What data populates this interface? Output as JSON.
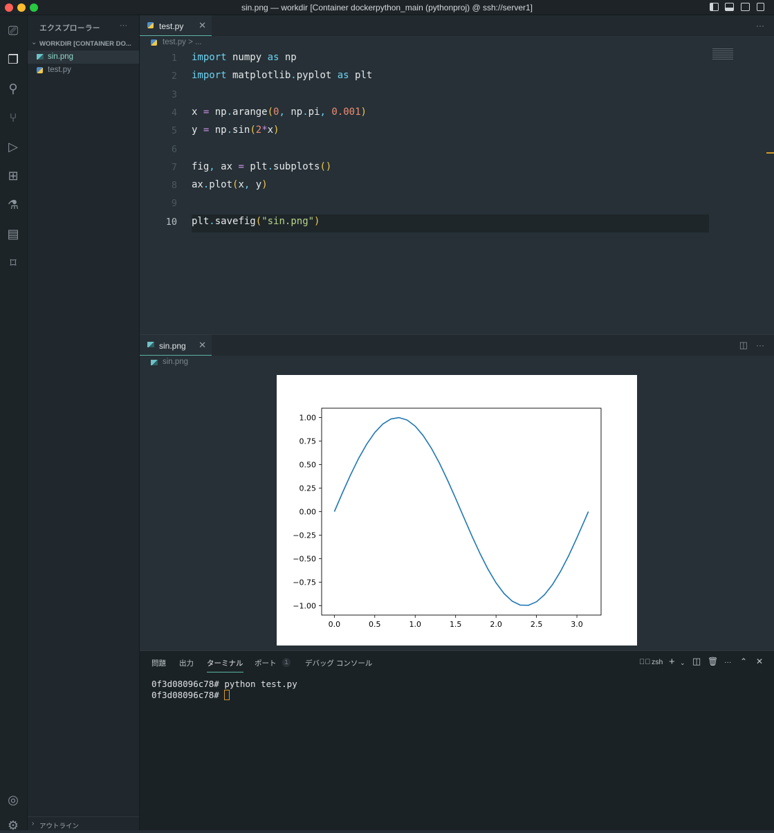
{
  "window": {
    "title": "sin.png — workdir [Container dockerpython_main (pythonproj) @ ssh://server1]"
  },
  "activity_bar": [
    "remote-explorer",
    "explorer",
    "search",
    "source-control",
    "run-debug",
    "extensions",
    "testing",
    "notebook",
    "bookmarks",
    "account",
    "settings"
  ],
  "sidebar": {
    "title": "エクスプローラー",
    "more": "···",
    "folder": "WORKDIR [CONTAINER DO...",
    "files": [
      {
        "name": "sin.png",
        "icon": "image-icon",
        "active": true
      },
      {
        "name": "test.py",
        "icon": "python-icon",
        "active": false
      }
    ],
    "outline": "アウトライン"
  },
  "editor1": {
    "tab": "test.py",
    "breadcrumb": "test.py > ...",
    "more": "···",
    "lines": [
      [
        [
          "import",
          "k"
        ],
        [
          " numpy ",
          "d"
        ],
        [
          "as",
          "k"
        ],
        [
          " np",
          "d"
        ]
      ],
      [
        [
          "import",
          "k"
        ],
        [
          " matplotlib",
          "d"
        ],
        [
          ".",
          "c"
        ],
        [
          "pyplot ",
          "d"
        ],
        [
          "as",
          "k"
        ],
        [
          " plt",
          "d"
        ]
      ],
      [],
      [
        [
          "x ",
          "d"
        ],
        [
          "=",
          "o"
        ],
        [
          " np",
          "d"
        ],
        [
          ".",
          "c"
        ],
        [
          "arange",
          "d"
        ],
        [
          "(",
          "p"
        ],
        [
          "0",
          "n"
        ],
        [
          ",",
          "c"
        ],
        [
          " np",
          "d"
        ],
        [
          ".",
          "c"
        ],
        [
          "pi",
          "d"
        ],
        [
          ",",
          "c"
        ],
        [
          " ",
          "d"
        ],
        [
          "0.001",
          "n"
        ],
        [
          ")",
          "p"
        ]
      ],
      [
        [
          "y ",
          "d"
        ],
        [
          "=",
          "o"
        ],
        [
          " np",
          "d"
        ],
        [
          ".",
          "c"
        ],
        [
          "sin",
          "d"
        ],
        [
          "(",
          "p"
        ],
        [
          "2",
          "n"
        ],
        [
          "*",
          "o"
        ],
        [
          "x",
          "d"
        ],
        [
          ")",
          "p"
        ]
      ],
      [],
      [
        [
          "fig",
          "d"
        ],
        [
          ",",
          "c"
        ],
        [
          " ax ",
          "d"
        ],
        [
          "=",
          "o"
        ],
        [
          " plt",
          "d"
        ],
        [
          ".",
          "c"
        ],
        [
          "subplots",
          "d"
        ],
        [
          "()",
          "p"
        ]
      ],
      [
        [
          "ax",
          "d"
        ],
        [
          ".",
          "c"
        ],
        [
          "plot",
          "d"
        ],
        [
          "(",
          "p"
        ],
        [
          "x",
          "d"
        ],
        [
          ",",
          "c"
        ],
        [
          " y",
          "d"
        ],
        [
          ")",
          "p"
        ]
      ],
      [],
      [
        [
          "plt",
          "d"
        ],
        [
          ".",
          "c"
        ],
        [
          "savefig",
          "d"
        ],
        [
          "(",
          "p"
        ],
        [
          "\"sin.png\"",
          "s"
        ],
        [
          ")",
          "p"
        ]
      ]
    ]
  },
  "editor2": {
    "tab": "sin.png",
    "breadcrumb": "sin.png",
    "more": "···"
  },
  "panel": {
    "tabs": [
      "問題",
      "出力",
      "ターミナル",
      "ポート",
      "デバッグ コンソール"
    ],
    "active_tab": "ターミナル",
    "ports_badge": "1",
    "shell": "zsh",
    "terminal_lines": [
      "0f3d08096c78# python test.py",
      "0f3d08096c78# "
    ]
  },
  "chart_data": {
    "type": "line",
    "title": "",
    "xlabel": "",
    "ylabel": "",
    "xlim": [
      -0.157,
      3.299
    ],
    "ylim": [
      -1.1,
      1.1
    ],
    "xticks": [
      "0.0",
      "0.5",
      "1.0",
      "1.5",
      "2.0",
      "2.5",
      "3.0"
    ],
    "xtick_values": [
      0,
      0.5,
      1,
      1.5,
      2,
      2.5,
      3
    ],
    "yticks": [
      "1.00",
      "0.75",
      "0.50",
      "0.25",
      "0.00",
      "−0.25",
      "−0.50",
      "−0.75",
      "−1.00"
    ],
    "ytick_values": [
      1,
      0.75,
      0.5,
      0.25,
      0,
      -0.25,
      -0.5,
      -0.75,
      -1
    ],
    "color": "#1f77b4",
    "grid": false,
    "x": [
      0,
      0.1,
      0.2,
      0.3,
      0.4,
      0.5,
      0.6,
      0.7,
      0.8,
      0.9,
      1.0,
      1.1,
      1.2,
      1.3,
      1.4,
      1.5,
      1.6,
      1.7,
      1.8,
      1.9,
      2.0,
      2.1,
      2.2,
      2.3,
      2.4,
      2.5,
      2.6,
      2.7,
      2.8,
      2.9,
      3.0,
      3.1,
      3.1416
    ],
    "y": [
      0,
      0.199,
      0.389,
      0.565,
      0.717,
      0.841,
      0.932,
      0.985,
      1.0,
      0.974,
      0.909,
      0.808,
      0.675,
      0.516,
      0.335,
      0.141,
      -0.058,
      -0.256,
      -0.443,
      -0.612,
      -0.757,
      -0.872,
      -0.952,
      -0.994,
      -0.996,
      -0.959,
      -0.883,
      -0.773,
      -0.631,
      -0.465,
      -0.279,
      -0.083,
      0
    ]
  }
}
